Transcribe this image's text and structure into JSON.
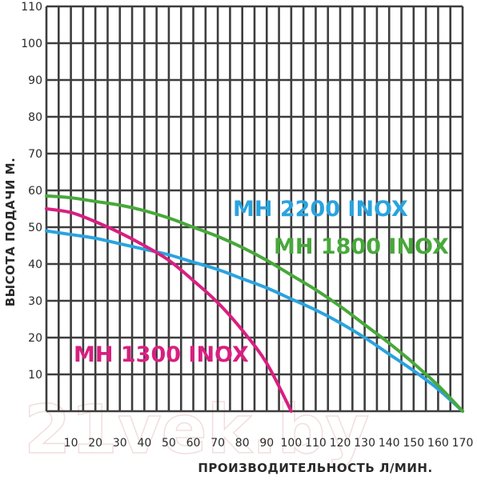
{
  "chart_data": {
    "type": "line",
    "title": "",
    "xlabel": "ПРОИЗВОДИТЕЛЬНОСТЬ Л/МИН.",
    "ylabel": "ВЫСОТА ПОДАЧИ М.",
    "x_ticks": [
      "10",
      "20",
      "30",
      "40",
      "50",
      "60",
      "70",
      "80",
      "90",
      "100",
      "110",
      "120",
      "130",
      "140",
      "150",
      "160",
      "170"
    ],
    "y_ticks": [
      "10",
      "20",
      "30",
      "40",
      "50",
      "60",
      "70",
      "80",
      "90",
      "100",
      "110"
    ],
    "xlim": [
      0,
      170
    ],
    "ylim": [
      0,
      110
    ],
    "grid": true,
    "legend": "labels placed next to each curve",
    "watermark": "21vek.by",
    "series": [
      {
        "name": "МН 2200 INOX",
        "color": "#2aa3de",
        "x": [
          0,
          10,
          20,
          30,
          40,
          50,
          60,
          70,
          80,
          90,
          100,
          110,
          120,
          130,
          140,
          150,
          160,
          170
        ],
        "y": [
          49,
          48,
          47,
          45.5,
          44,
          42.5,
          40.5,
          38.5,
          36,
          33.5,
          30.5,
          27.5,
          24,
          20,
          15.5,
          11,
          6,
          0
        ]
      },
      {
        "name": "МН 1800 INOX",
        "color": "#48a83b",
        "x": [
          0,
          10,
          20,
          30,
          40,
          50,
          60,
          70,
          80,
          90,
          100,
          110,
          120,
          130,
          140,
          150,
          160,
          170
        ],
        "y": [
          58.5,
          58,
          57,
          56,
          54.5,
          52.5,
          50,
          47.5,
          44.5,
          41,
          37,
          33,
          28.5,
          23.5,
          18.5,
          13,
          7,
          0
        ]
      },
      {
        "name": "МН 1300 INOX",
        "color": "#d81f80",
        "x": [
          0,
          10,
          20,
          30,
          40,
          50,
          60,
          70,
          80,
          90,
          100
        ],
        "y": [
          55,
          54,
          51.5,
          48.5,
          45,
          41,
          35.5,
          29.5,
          22,
          13,
          0
        ]
      }
    ]
  }
}
